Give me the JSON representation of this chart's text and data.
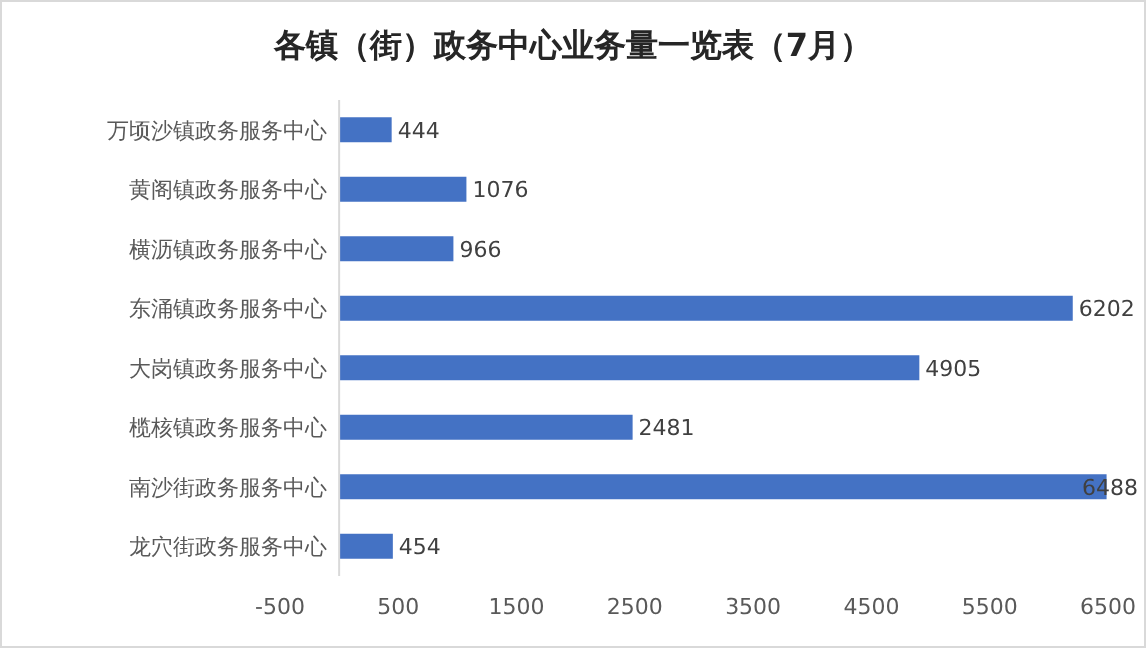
{
  "chart_data": {
    "type": "bar",
    "orientation": "horizontal",
    "title": "各镇（街）政务中心业务量一览表（7月）",
    "categories": [
      "万顷沙镇政务服务中心",
      "黄阁镇政务服务中心",
      "横沥镇政务服务中心",
      "东涌镇政务服务中心",
      "大岗镇政务服务中心",
      "榄核镇政务服务中心",
      "南沙街政务服务中心",
      "龙穴街政务服务中心"
    ],
    "values": [
      444,
      1076,
      966,
      6202,
      4905,
      2481,
      6488,
      454
    ],
    "color": "#4472c4",
    "xlim": [
      -500,
      6500
    ],
    "xticks": [
      -500,
      500,
      1500,
      2500,
      3500,
      4500,
      5500,
      6500
    ],
    "data_labels": true,
    "grid": false
  }
}
